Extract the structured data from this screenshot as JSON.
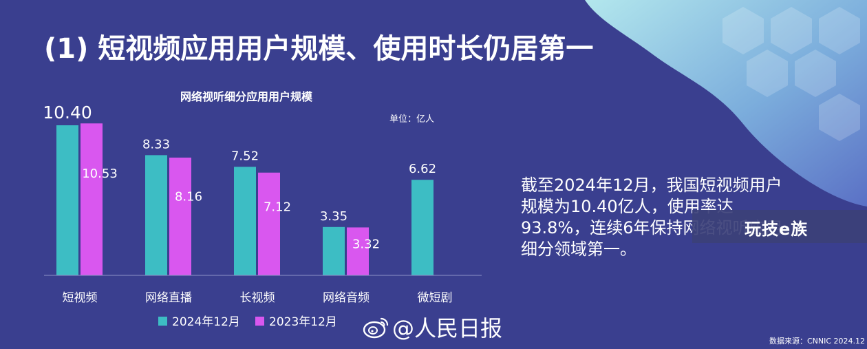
{
  "page": {
    "title": "(1) 短视频应用用户规模、使用时长仍居第一",
    "summary": "截至2024年12月，我国短视频用户规模为10.40亿人，使用率达93.8%，连续6年保持网络视听应用细分领域第一。",
    "watermark": "玩技e族",
    "weibo_handle": "@人民日报",
    "source": "数据来源：CNNIC 2024.12"
  },
  "colors": {
    "background": "#3a3f8f",
    "series_2024": "#3dbdc4",
    "series_2023": "#d957ef",
    "deco_light": "#a8e6ef",
    "deco_mid": "#6ea2d8"
  },
  "chart_data": {
    "type": "bar",
    "title": "网络视听细分应用用户规模",
    "unit": "单位：亿人",
    "categories": [
      "短视频",
      "网络直播",
      "长视频",
      "网络音频",
      "微短剧"
    ],
    "series": [
      {
        "name": "2024年12月",
        "values": [
          10.4,
          8.33,
          7.52,
          3.35,
          6.62
        ],
        "labels": [
          "10.40",
          "8.33",
          "7.52",
          "3.35",
          "6.62"
        ]
      },
      {
        "name": "2023年12月",
        "values": [
          10.53,
          8.16,
          7.12,
          3.32,
          null
        ],
        "labels": [
          "10.53",
          "8.16",
          "7.12",
          "3.32",
          ""
        ]
      }
    ],
    "ylim": [
      0,
      11
    ],
    "grid": false,
    "legend": "bottom"
  }
}
